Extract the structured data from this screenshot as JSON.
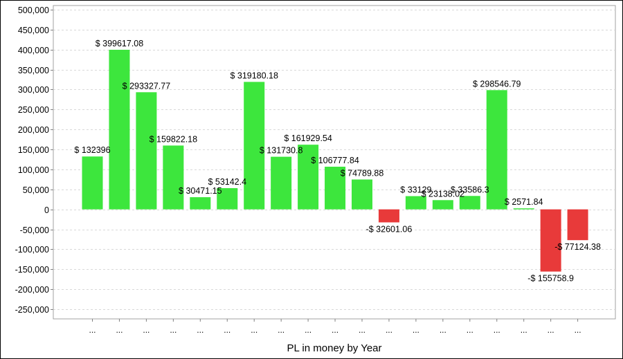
{
  "chart_data": {
    "type": "bar",
    "title": "",
    "xlabel": "PL in money by Year",
    "ylabel": "",
    "ylim": [
      -250000,
      500000
    ],
    "ytick_step": 50000,
    "ytick_labels": [
      "500,000",
      "450,000",
      "400,000",
      "350,000",
      "300,000",
      "250,000",
      "200,000",
      "150,000",
      "100,000",
      "50,000",
      "0",
      "-50,000",
      "-100,000",
      "-150,000",
      "-200,000",
      "-250,000"
    ],
    "grid": true,
    "legend": "none",
    "positive_color": "#3de63d",
    "negative_color": "#e83a3a",
    "categories": [
      "...",
      "...",
      "...",
      "...",
      "...",
      "...",
      "...",
      "...",
      "...",
      "...",
      "...",
      "...",
      "...",
      "...",
      "...",
      "...",
      "...",
      "...",
      "..."
    ],
    "values": [
      132396,
      399617.08,
      293327.77,
      159822.18,
      30471.15,
      53142.4,
      319180.18,
      131730.8,
      161929.54,
      106777.84,
      74789.88,
      -32601.06,
      33129,
      23138.02,
      33586.3,
      298546.79,
      2571.84,
      -155758.9,
      -77124.38
    ],
    "data_labels": [
      "$ 132396",
      "$ 399617.08",
      "$ 293327.77",
      "$ 159822.18",
      "$ 30471.15",
      "$ 53142.4",
      "$ 319180.18",
      "$ 131730.8",
      "$ 161929.54",
      "$ 106777.84",
      "$ 74789.88",
      "-$ 32601.06",
      "$ 33129",
      "$ 23138.02",
      "$ 33586.3",
      "$ 298546.79",
      "$ 2571.84",
      "-$ 155758.9",
      "-$ 77124.38"
    ]
  }
}
